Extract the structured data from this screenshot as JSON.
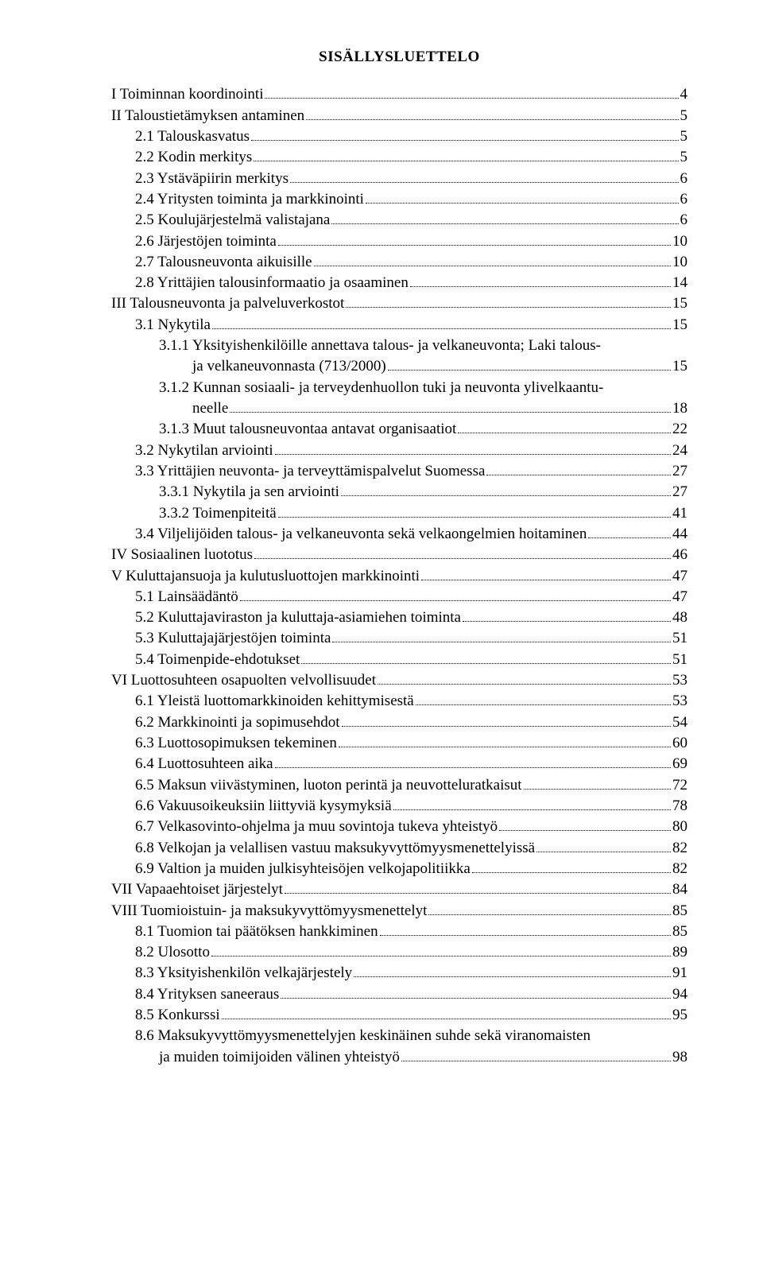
{
  "title": "SISÄLLYSLUETTELO",
  "toc": [
    {
      "level": 0,
      "label": "I Toiminnan koordinointi",
      "page": "4"
    },
    {
      "level": 0,
      "label": "II Taloustietämyksen antaminen",
      "page": "5"
    },
    {
      "level": 1,
      "label": "2.1 Talouskasvatus",
      "page": "5"
    },
    {
      "level": 1,
      "label": "2.2 Kodin merkitys",
      "page": "5"
    },
    {
      "level": 1,
      "label": "2.3 Ystäväpiirin merkitys",
      "page": "6"
    },
    {
      "level": 1,
      "label": "2.4 Yritysten toiminta ja markkinointi",
      "page": "6"
    },
    {
      "level": 1,
      "label": "2.5 Koulujärjestelmä valistajana",
      "page": "6"
    },
    {
      "level": 1,
      "label": "2.6 Järjestöjen toiminta",
      "page": "10"
    },
    {
      "level": 1,
      "label": "2.7 Talousneuvonta aikuisille",
      "page": "10"
    },
    {
      "level": 1,
      "label": "2.8 Yrittäjien talousinformaatio ja osaaminen",
      "page": "14"
    },
    {
      "level": 0,
      "label": "III Talousneuvonta ja palveluverkostot",
      "page": "15"
    },
    {
      "level": 1,
      "label": "3.1 Nykytila",
      "page": "15"
    },
    {
      "level": 2,
      "wrap": true,
      "label": "3.1.1 Yksityishenkilöille annettava talous- ja velkaneuvonta; Laki talous- ja velkaneuvonnasta (713/2000)",
      "page": "15"
    },
    {
      "level": 2,
      "wrap": true,
      "label": "3.1.2 Kunnan sosiaali- ja terveydenhuollon tuki ja neuvonta ylivelkaantuneelle",
      "page": "18"
    },
    {
      "level": 2,
      "label": "3.1.3 Muut talousneuvontaa antavat organisaatiot",
      "page": "22"
    },
    {
      "level": 1,
      "label": "3.2 Nykytilan arviointi",
      "page": "24"
    },
    {
      "level": 1,
      "label": "3.3 Yrittäjien neuvonta- ja terveyttämispalvelut Suomessa",
      "page": "27"
    },
    {
      "level": 2,
      "label": "3.3.1 Nykytila ja sen arviointi",
      "page": "27"
    },
    {
      "level": 2,
      "label": "3.3.2 Toimenpiteitä",
      "page": "41"
    },
    {
      "level": 1,
      "label": "3.4 Viljelijöiden talous- ja velkaneuvonta sekä velkaongelmien hoitaminen",
      "page": "44"
    },
    {
      "level": 0,
      "label": "IV Sosiaalinen luototus",
      "page": "46"
    },
    {
      "level": 0,
      "label": "V Kuluttajansuoja ja kulutusluottojen markkinointi",
      "page": "47"
    },
    {
      "level": 1,
      "label": "5.1 Lainsäädäntö",
      "page": "47"
    },
    {
      "level": 1,
      "label": "5.2 Kuluttajaviraston ja kuluttaja-asiamiehen toiminta",
      "page": "48"
    },
    {
      "level": 1,
      "label": "5.3 Kuluttajajärjestöjen toiminta",
      "page": "51"
    },
    {
      "level": 1,
      "label": "5.4 Toimenpide-ehdotukset",
      "page": "51"
    },
    {
      "level": 0,
      "label": "VI Luottosuhteen osapuolten velvollisuudet",
      "page": "53"
    },
    {
      "level": 1,
      "label": "6.1 Yleistä luottomarkkinoiden kehittymisestä",
      "page": "53"
    },
    {
      "level": 1,
      "label": "6.2 Markkinointi ja sopimusehdot",
      "page": "54"
    },
    {
      "level": 1,
      "label": "6.3 Luottosopimuksen tekeminen",
      "page": "60"
    },
    {
      "level": 1,
      "label": "6.4 Luottosuhteen aika",
      "page": "69"
    },
    {
      "level": 1,
      "label": "6.5 Maksun viivästyminen, luoton perintä ja neuvotteluratkaisut",
      "page": "72"
    },
    {
      "level": 1,
      "label": "6.6 Vakuusoikeuksiin liittyviä kysymyksiä",
      "page": "78"
    },
    {
      "level": 1,
      "label": "6.7 Velkasovinto-ohjelma ja muu sovintoja tukeva yhteistyö",
      "page": "80"
    },
    {
      "level": 1,
      "label": "6.8 Velkojan ja velallisen vastuu maksukyvyttömyysmenettelyissä",
      "page": "82"
    },
    {
      "level": 1,
      "label": "6.9 Valtion ja muiden julkisyhteisöjen velkojapolitiikka",
      "page": "82"
    },
    {
      "level": 0,
      "label": "VII Vapaaehtoiset järjestelyt",
      "page": "84"
    },
    {
      "level": 0,
      "label": "VIII Tuomioistuin- ja maksukyvyttömyysmenettelyt",
      "page": "85"
    },
    {
      "level": 1,
      "label": "8.1 Tuomion tai päätöksen hankkiminen",
      "page": "85"
    },
    {
      "level": 1,
      "label": "8.2 Ulosotto",
      "page": "89"
    },
    {
      "level": 1,
      "label": "8.3 Yksityishenkilön velkajärjestely",
      "page": "91"
    },
    {
      "level": 1,
      "label": "8.4 Yrityksen saneeraus",
      "page": "94"
    },
    {
      "level": 1,
      "label": "8.5 Konkurssi",
      "page": "95"
    },
    {
      "level": 1,
      "wrap": true,
      "label": "8.6 Maksukyvyttömyysmenettelyjen keskinäinen suhde sekä viranomaisten ja muiden toimijoiden välinen yhteistyö",
      "page": "98"
    }
  ]
}
